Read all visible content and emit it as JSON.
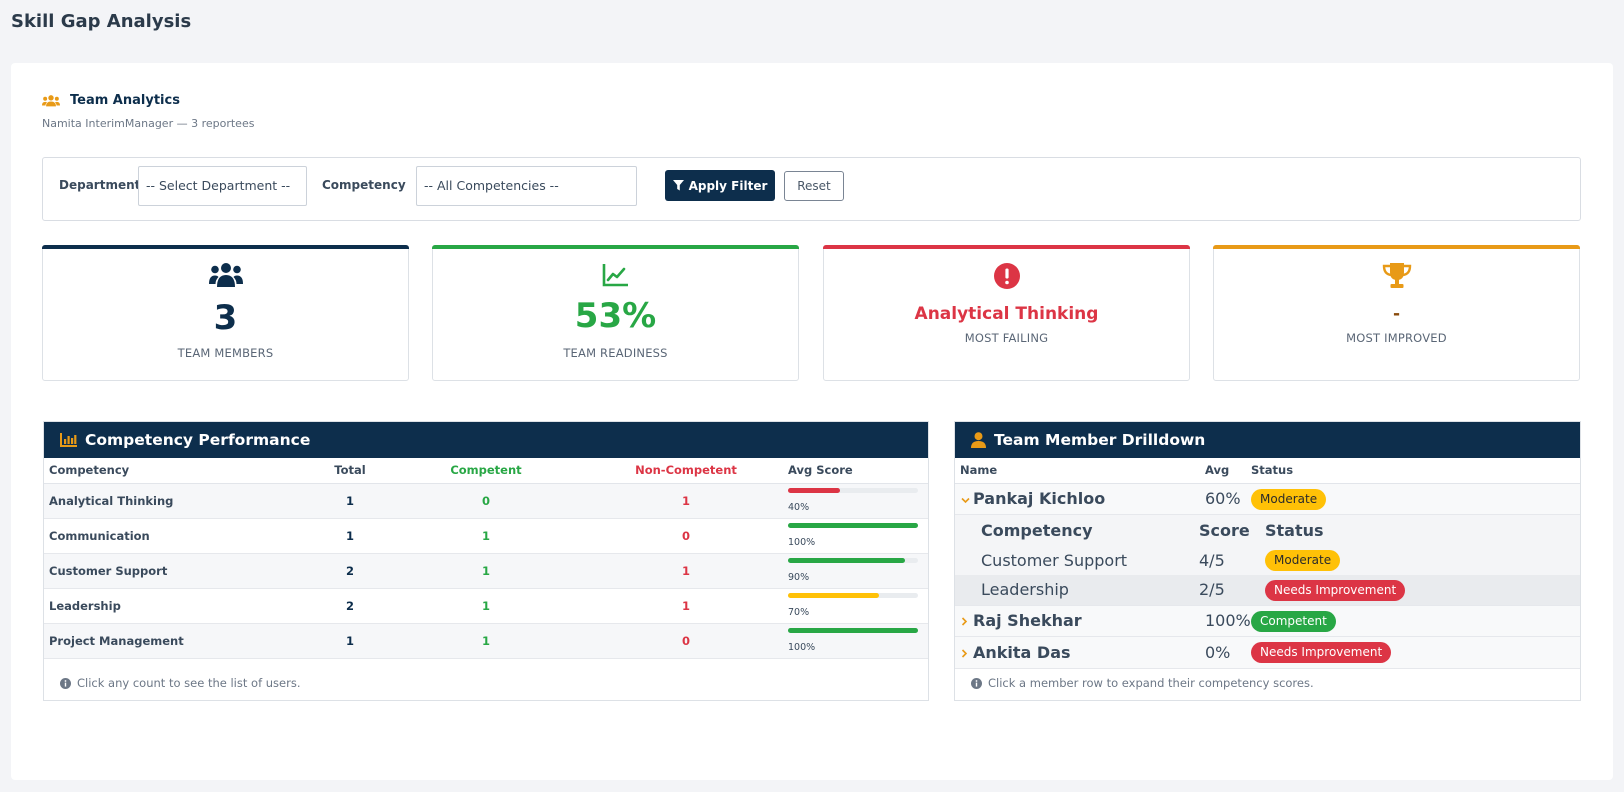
{
  "page": {
    "title": "Skill Gap Analysis"
  },
  "section": {
    "title": "Team Analytics",
    "subtitle": "Namita InterimManager — 3 reportees"
  },
  "filters": {
    "department_label": "Department",
    "department_value": "-- Select Department --",
    "competency_label": "Competency",
    "competency_value": "-- All Competencies --",
    "apply_label": "Apply Filter",
    "reset_label": "Reset"
  },
  "stats": {
    "members": {
      "value": "3",
      "label": "TEAM MEMBERS",
      "color": "#0d2e4c"
    },
    "readiness": {
      "value": "53%",
      "label": "TEAM READINESS",
      "color": "#28a745"
    },
    "failing": {
      "value": "Analytical Thinking",
      "label": "MOST FAILING",
      "color": "#dc3545"
    },
    "improved": {
      "value": "-",
      "label": "MOST IMPROVED",
      "color": "#e89a17"
    }
  },
  "competency_panel": {
    "title": "Competency Performance",
    "headers": {
      "competency": "Competency",
      "total": "Total",
      "competent": "Competent",
      "non_competent": "Non-Competent",
      "avg": "Avg Score"
    },
    "rows": [
      {
        "name": "Analytical Thinking",
        "total": "1",
        "competent": "0",
        "non_competent": "1",
        "pct": "40%",
        "value": 40,
        "color": "#dc3545"
      },
      {
        "name": "Communication",
        "total": "1",
        "competent": "1",
        "non_competent": "0",
        "pct": "100%",
        "value": 100,
        "color": "#28a745"
      },
      {
        "name": "Customer Support",
        "total": "2",
        "competent": "1",
        "non_competent": "1",
        "pct": "90%",
        "value": 90,
        "color": "#28a745"
      },
      {
        "name": "Leadership",
        "total": "2",
        "competent": "1",
        "non_competent": "1",
        "pct": "70%",
        "value": 70,
        "color": "#ffc107"
      },
      {
        "name": "Project Management",
        "total": "1",
        "competent": "1",
        "non_competent": "0",
        "pct": "100%",
        "value": 100,
        "color": "#28a745"
      }
    ],
    "note": "Click any count to see the list of users."
  },
  "drilldown_panel": {
    "title": "Team Member Drilldown",
    "headers": {
      "name": "Name",
      "avg": "Avg",
      "status": "Status"
    },
    "members": [
      {
        "name": "Pankaj Kichloo",
        "avg": "60%",
        "status": "Moderate",
        "status_type": "moderate",
        "expanded": true,
        "sub_headers": {
          "competency": "Competency",
          "score": "Score",
          "status": "Status"
        },
        "details": [
          {
            "competency": "Customer Support",
            "score": "4/5",
            "status": "Moderate",
            "status_type": "moderate"
          },
          {
            "competency": "Leadership",
            "score": "2/5",
            "status": "Needs Improvement",
            "status_type": "need"
          }
        ]
      },
      {
        "name": "Raj Shekhar",
        "avg": "100%",
        "status": "Competent",
        "status_type": "competent",
        "expanded": false
      },
      {
        "name": "Ankita Das",
        "avg": "0%",
        "status": "Needs Improvement",
        "status_type": "need",
        "expanded": false
      }
    ],
    "note": "Click a member row to expand their competency scores."
  },
  "colors": {
    "navy": "#0d2e4c",
    "green": "#28a745",
    "red": "#dc3545",
    "amber": "#e89a17",
    "yellow": "#ffc107"
  }
}
